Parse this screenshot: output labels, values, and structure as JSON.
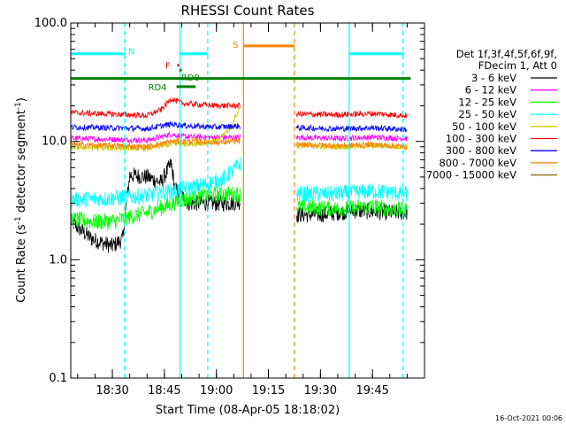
{
  "chart_data": {
    "type": "line",
    "title": "RHESSI Count Rates",
    "xlabel": "Start Time (08-Apr-05 18:18:02)",
    "ylabel_main": "Count Rate (s",
    "ylabel_sup": "-1",
    "ylabel_mid": " detector segment",
    "ylabel_sup2": "-1",
    "ylabel_end": ")",
    "y_scale": "log",
    "ylim": [
      0.1,
      100
    ],
    "xlim": [
      "18:18",
      "20:00"
    ],
    "x_ticks": [
      {
        "t": "18:30",
        "label": "18:30"
      },
      {
        "t": "18:45",
        "label": "18:45"
      },
      {
        "t": "19:00",
        "label": "19:00"
      },
      {
        "t": "19:15",
        "label": "19:15"
      },
      {
        "t": "19:30",
        "label": "19:30"
      },
      {
        "t": "19:45",
        "label": "19:45"
      }
    ],
    "y_ticks": [
      {
        "v": 0.1,
        "label": "0.1"
      },
      {
        "v": 1,
        "label": "1.0"
      },
      {
        "v": 10,
        "label": "10.0"
      },
      {
        "v": 100,
        "label": "100.0"
      }
    ],
    "legend_header": [
      "Det 1f,3f,4f,5f,6f,9f,",
      "FDecim 1, Att 0"
    ],
    "legend_placement": "right",
    "timestamp": "16-Oct-2021 00:06",
    "series": [
      {
        "name": "3 - 6 keV",
        "color": "#000000",
        "segments": [
          {
            "x": [
              "18:18",
              "18:24",
              "18:30",
              "18:33",
              "18:35",
              "18:40",
              "18:44",
              "18:47",
              "18:48",
              "18:52",
              "18:58",
              "19:04",
              "19:07"
            ],
            "y": [
              2.1,
              1.5,
              1.3,
              1.5,
              5.2,
              5.0,
              4.5,
              6.5,
              4.0,
              3.0,
              3.0,
              3.0,
              3.1
            ]
          },
          {
            "x": [
              "19:23",
              "19:30",
              "19:40",
              "19:50",
              "19:55"
            ],
            "y": [
              2.4,
              2.4,
              2.6,
              2.5,
              2.5
            ]
          }
        ]
      },
      {
        "name": "6 - 12 keV",
        "color": "#ff00ff",
        "segments": [
          {
            "x": [
              "18:18",
              "18:30",
              "18:40",
              "18:47",
              "18:50",
              "18:58",
              "19:07"
            ],
            "y": [
              10.6,
              10.4,
              10.2,
              11.5,
              11.0,
              10.8,
              10.8
            ]
          },
          {
            "x": [
              "19:23",
              "19:35",
              "19:45",
              "19:55"
            ],
            "y": [
              10.8,
              10.6,
              10.8,
              10.6
            ]
          }
        ]
      },
      {
        "name": "12 - 25 keV",
        "color": "#00ff00",
        "segments": [
          {
            "x": [
              "18:18",
              "18:25",
              "18:30",
              "18:40",
              "18:45",
              "18:50",
              "18:58",
              "19:05",
              "19:07"
            ],
            "y": [
              2.2,
              2.1,
              2.1,
              2.5,
              2.8,
              3.2,
              3.5,
              3.6,
              3.6
            ]
          },
          {
            "x": [
              "19:23",
              "19:35",
              "19:45",
              "19:55"
            ],
            "y": [
              2.8,
              2.7,
              2.8,
              2.6
            ]
          }
        ]
      },
      {
        "name": "25 - 50 keV",
        "color": "#00ffff",
        "segments": [
          {
            "x": [
              "18:18",
              "18:30",
              "18:40",
              "18:47",
              "18:55",
              "19:02",
              "19:07"
            ],
            "y": [
              3.2,
              3.3,
              3.5,
              3.8,
              4.2,
              4.8,
              6.5
            ]
          },
          {
            "x": [
              "19:23",
              "19:35",
              "19:45",
              "19:55"
            ],
            "y": [
              3.6,
              3.6,
              3.8,
              3.6
            ]
          }
        ]
      },
      {
        "name": "50 - 100 keV",
        "color": "#cccc00",
        "segments": [
          {
            "x": [
              "18:18",
              "18:30",
              "18:40",
              "18:47",
              "18:55",
              "19:00",
              "19:04",
              "19:07"
            ],
            "y": [
              8.9,
              8.8,
              8.7,
              9.5,
              9.6,
              10.0,
              13.0,
              20.0
            ]
          },
          {
            "x": [
              "19:23",
              "19:35",
              "19:45",
              "19:55"
            ],
            "y": [
              9.2,
              9.0,
              9.2,
              9.0
            ]
          }
        ]
      },
      {
        "name": "100 - 300 keV",
        "color": "#ff0000",
        "segments": [
          {
            "x": [
              "18:18",
              "18:30",
              "18:40",
              "18:44",
              "18:47",
              "18:50",
              "19:00",
              "19:07"
            ],
            "y": [
              17.5,
              17.0,
              16.5,
              18.5,
              23.0,
              21.0,
              20.0,
              20.0
            ]
          },
          {
            "x": [
              "19:23",
              "19:35",
              "19:45",
              "19:55"
            ],
            "y": [
              17.0,
              16.8,
              17.2,
              16.5
            ]
          }
        ]
      },
      {
        "name": "300 - 800 keV",
        "color": "#0000ff",
        "segments": [
          {
            "x": [
              "18:18",
              "18:30",
              "18:40",
              "18:47",
              "18:52",
              "19:00",
              "19:07"
            ],
            "y": [
              13.2,
              13.0,
              12.8,
              14.0,
              13.5,
              13.2,
              13.5
            ]
          },
          {
            "x": [
              "19:23",
              "19:35",
              "19:45",
              "19:55"
            ],
            "y": [
              13.0,
              12.8,
              13.0,
              12.6
            ]
          }
        ]
      },
      {
        "name": "800 - 7000 keV",
        "color": "#ff8000",
        "segments": [
          {
            "x": [
              "18:18",
              "18:30",
              "18:40",
              "18:47",
              "18:55",
              "19:00",
              "19:07"
            ],
            "y": [
              9.4,
              9.2,
              9.0,
              10.0,
              10.0,
              9.8,
              10.0
            ]
          },
          {
            "x": [
              "19:23",
              "19:35",
              "19:45",
              "19:55"
            ],
            "y": [
              9.4,
              9.2,
              9.4,
              9.0
            ]
          }
        ]
      },
      {
        "name": "7000 - 15000 keV",
        "color": "#8c6400",
        "segments": []
      }
    ],
    "vertical_lines": [
      {
        "t": "18:18",
        "style": "solid",
        "color": "#00ffff"
      },
      {
        "t": "18:33.5",
        "style": "dashed",
        "color": "#00ffff"
      },
      {
        "t": "18:49.5",
        "style": "solid",
        "color": "#00ffff"
      },
      {
        "t": "18:57.5",
        "style": "dashed",
        "color": "#00ffff"
      },
      {
        "t": "19:07.8",
        "style": "solid",
        "color": "#ff8000"
      },
      {
        "t": "19:22.5",
        "style": "dashed",
        "color": "#ff8000"
      },
      {
        "t": "19:38.3",
        "style": "solid",
        "color": "#00ffff"
      },
      {
        "t": "19:53.8",
        "style": "dashed",
        "color": "#00ffff"
      }
    ],
    "flag_bars": [
      {
        "label": "N",
        "start": "18:18",
        "end": "18:33.5",
        "level": 55,
        "color": "#00ffff",
        "label_at": "18:35.5",
        "label_level": 58
      },
      {
        "label": "",
        "start": "18:49.5",
        "end": "18:57.5",
        "level": 55,
        "color": "#00ffff"
      },
      {
        "label": "",
        "start": "19:38.3",
        "end": "19:53.8",
        "level": 55,
        "color": "#00ffff"
      },
      {
        "label": "F",
        "start": "18:48.7",
        "end": "18:49.2",
        "level": 44,
        "color": "#cc0000",
        "label_at": "18:46",
        "label_level": 44
      },
      {
        "label": "RD0",
        "start": "18:49.3",
        "end": "18:50",
        "level": 40,
        "color": "#008000",
        "label_at": "18:52.5",
        "label_level": 35
      },
      {
        "label": "RD4",
        "start": "18:48.5",
        "end": "18:54",
        "level": 29,
        "color": "#008000",
        "label_at": "18:43",
        "label_level": 29
      },
      {
        "label": "",
        "start": "18:18",
        "end": "19:56",
        "level": 34,
        "color": "#008000"
      },
      {
        "label": "S",
        "start": "19:07.8",
        "end": "19:22.5",
        "level": 64,
        "color": "#ff8000",
        "label_at": "19:05.5",
        "label_level": 66
      }
    ]
  }
}
